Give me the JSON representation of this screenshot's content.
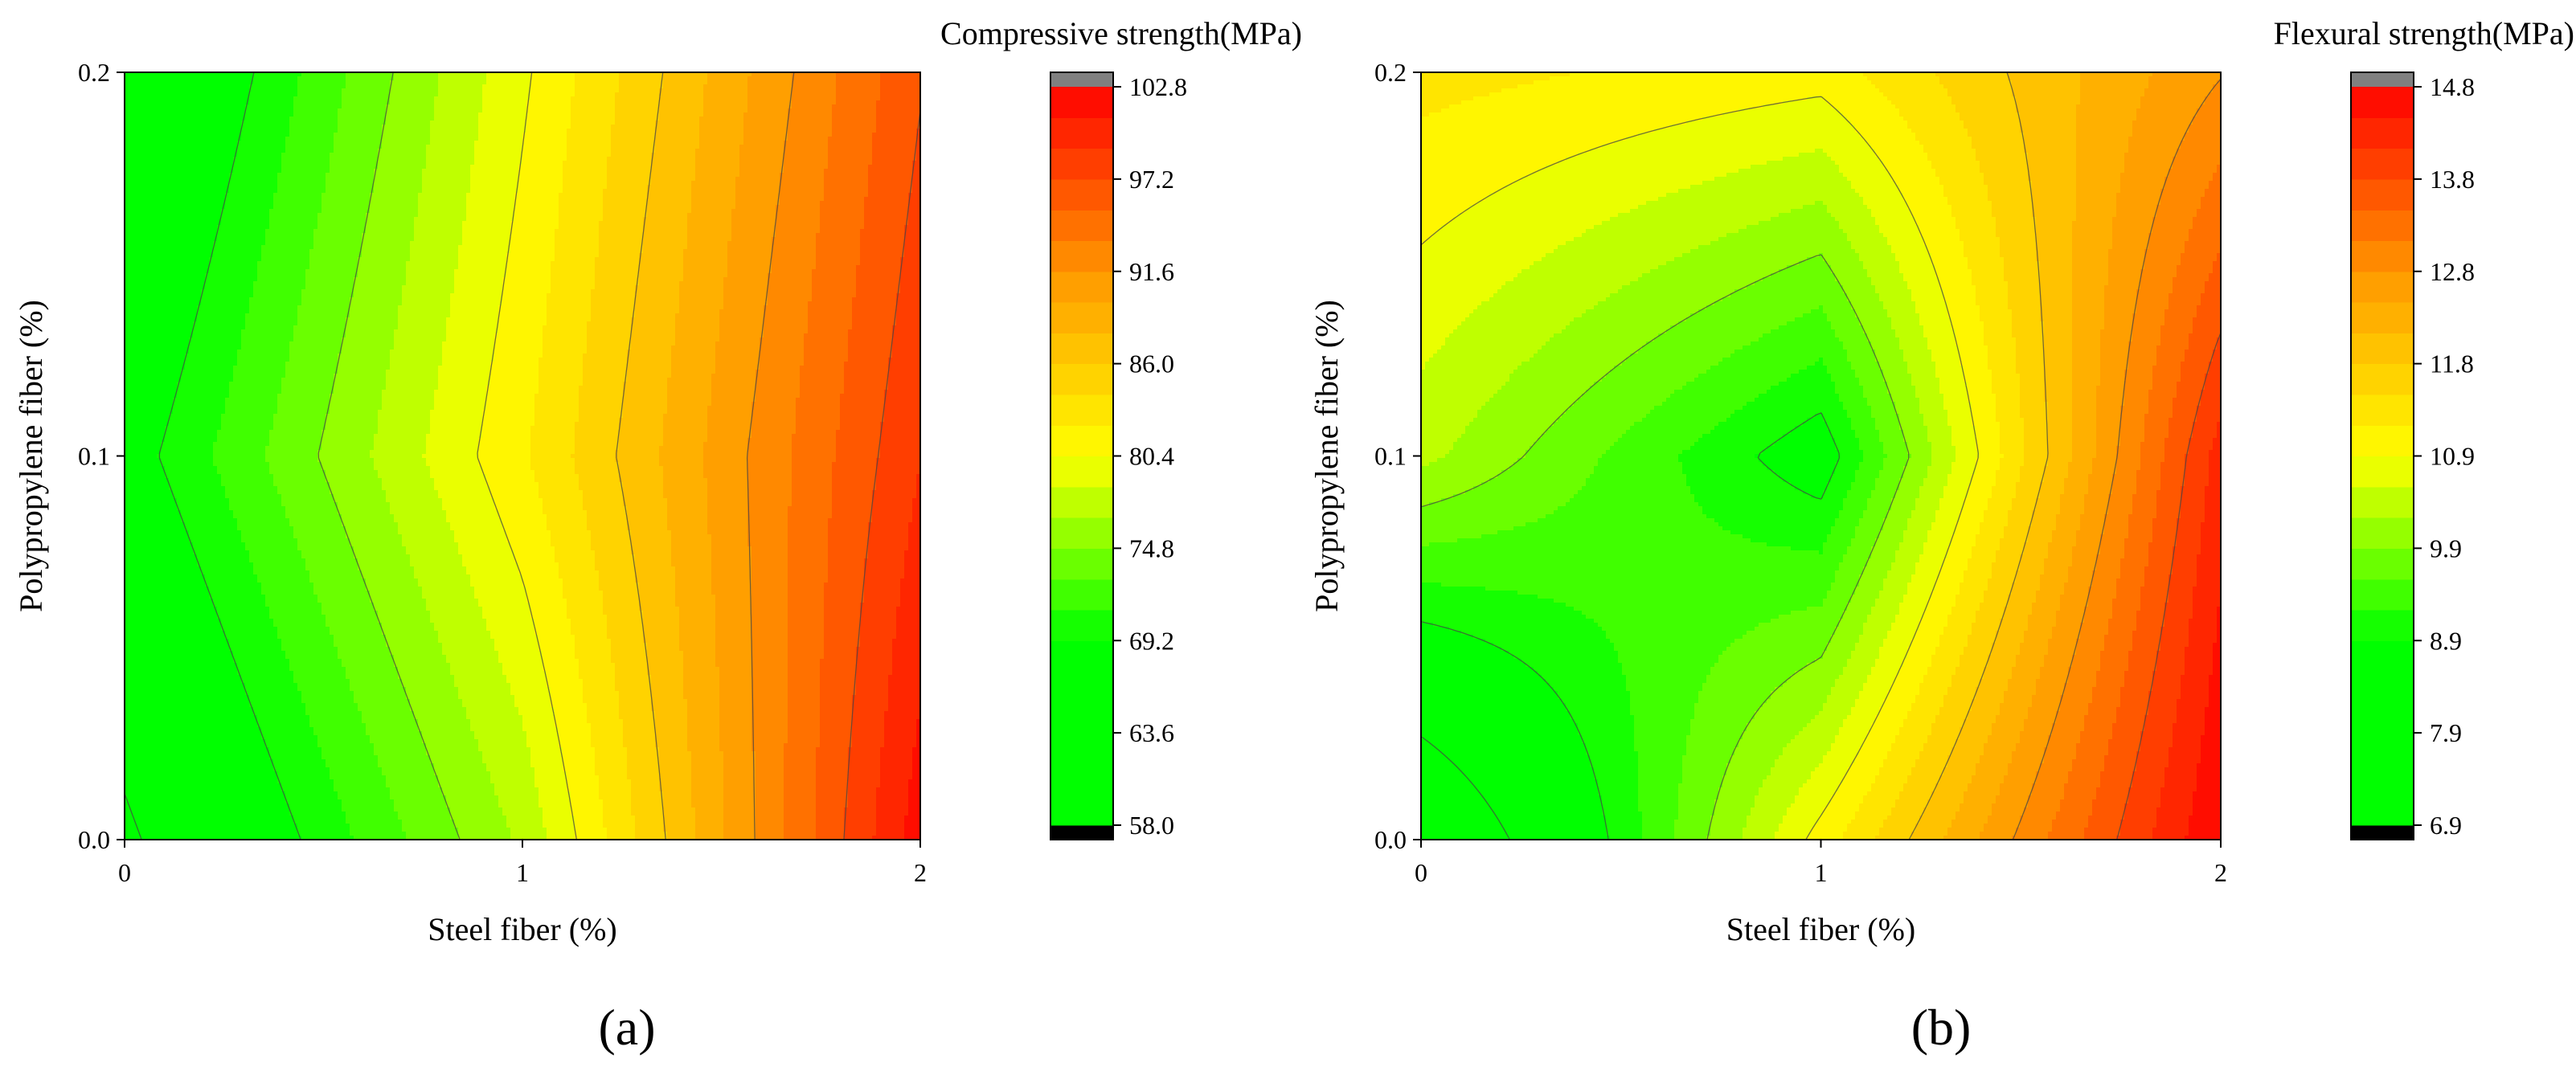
{
  "chart_data": [
    {
      "type": "heatmap",
      "subtype": "filled-contour",
      "panel_label": "(a)",
      "colorbar_title": "Compressive strength(MPa)",
      "xlabel": "Steel fiber (%)",
      "ylabel": "Polypropylene fiber (%)",
      "x": [
        0,
        1,
        2
      ],
      "y": [
        0.0,
        0.1,
        0.2
      ],
      "z": [
        [
          63.0,
          77.0,
          102.0
        ],
        [
          68.0,
          82.0,
          99.0
        ],
        [
          64.0,
          80.0,
          97.0
        ]
      ],
      "xlim": [
        0,
        2
      ],
      "ylim": [
        0.0,
        0.2
      ],
      "xticks": [
        "0",
        "1",
        "2"
      ],
      "yticks": [
        "0.0",
        "0.1",
        "0.2"
      ],
      "colorbar_range": [
        58.0,
        102.8
      ],
      "colorbar_ticks": [
        "58.0",
        "63.6",
        "69.2",
        "74.8",
        "80.4",
        "86.0",
        "91.6",
        "97.2",
        "102.8"
      ]
    },
    {
      "type": "heatmap",
      "subtype": "filled-contour",
      "panel_label": "(b)",
      "colorbar_title": "Flexural strength(MPa)",
      "xlabel": "Steel fiber (%)",
      "ylabel": "Polypropylene fiber (%)",
      "x": [
        0,
        1,
        2
      ],
      "y": [
        0.0,
        0.1,
        0.2
      ],
      "z": [
        [
          7.0,
          11.0,
          14.8
        ],
        [
          10.3,
          8.6,
          14.3
        ],
        [
          11.3,
          11.0,
          12.8
        ]
      ],
      "xlim": [
        0,
        2
      ],
      "ylim": [
        0.0,
        0.2
      ],
      "xticks": [
        "0",
        "1",
        "2"
      ],
      "yticks": [
        "0.0",
        "0.1",
        "0.2"
      ],
      "colorbar_range": [
        6.9,
        14.8
      ],
      "colorbar_ticks": [
        "6.9",
        "7.9",
        "8.9",
        "9.9",
        "10.9",
        "11.8",
        "12.8",
        "13.8",
        "14.8"
      ]
    }
  ]
}
